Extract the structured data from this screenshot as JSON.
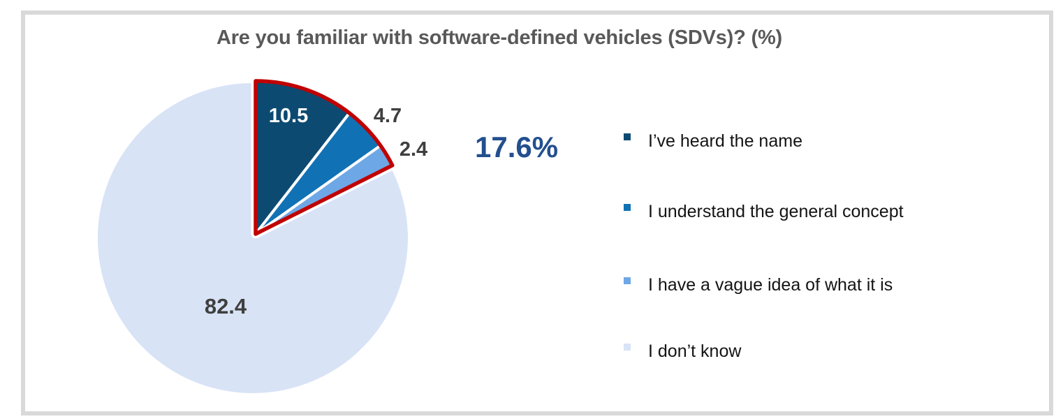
{
  "title": "Are you familiar with software-defined vehicles (SDVs)? (%)",
  "callout": {
    "label": "17.6%",
    "color": "#234f8e"
  },
  "chart_data": {
    "type": "pie",
    "title": "Are you familiar with software-defined vehicles (SDVs)? (%)",
    "units": "%",
    "start_angle_deg": 0,
    "direction": "clockwise",
    "slices": [
      {
        "label": "I’ve heard the name",
        "value": 10.5,
        "color": "#0d4a72",
        "value_label_color": "#ffffff",
        "value_label_position": "inside"
      },
      {
        "label": "I understand the general concept",
        "value": 4.7,
        "color": "#1072b4",
        "value_label_color": "#3f3f3f",
        "value_label_position": "outside"
      },
      {
        "label": "I have a vague idea of what it is",
        "value": 2.4,
        "color": "#6ea7e5",
        "value_label_color": "#3f3f3f",
        "value_label_position": "outside"
      },
      {
        "label": "I don’t know",
        "value": 82.4,
        "color": "#d8e3f6",
        "value_label_color": "#3f3f3f",
        "value_label_position": "inside"
      }
    ],
    "highlight_group": {
      "slice_indices": [
        0,
        1,
        2
      ],
      "total": 17.6,
      "annotation": "17.6%",
      "outline_color": "#c00000",
      "separator_color": "#ffffff"
    },
    "legend_position": "right",
    "frame_border_color": "#d9d9d9"
  }
}
